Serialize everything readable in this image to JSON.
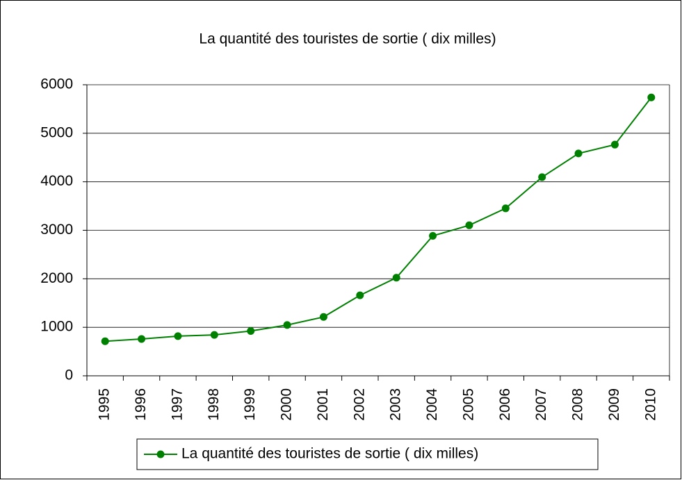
{
  "chart_data": {
    "type": "line",
    "title": "La quantité des touristes de sortie ( dix milles)",
    "categories": [
      "1995",
      "1996",
      "1997",
      "1998",
      "1999",
      "2000",
      "2001",
      "2002",
      "2003",
      "2004",
      "2005",
      "2006",
      "2007",
      "2008",
      "2009",
      "2010"
    ],
    "series": [
      {
        "name": "La quantité des touristes de sortie ( dix milles)",
        "color": "#008000",
        "values": [
          713,
          759,
          818,
          843,
          923,
          1047,
          1213,
          1660,
          2022,
          2885,
          3103,
          3452,
          4095,
          4584,
          4766,
          5739
        ]
      }
    ],
    "ylim": [
      0,
      6000
    ],
    "yticks": [
      0,
      1000,
      2000,
      3000,
      4000,
      5000,
      6000
    ],
    "grid": true,
    "legend": "bottom"
  }
}
